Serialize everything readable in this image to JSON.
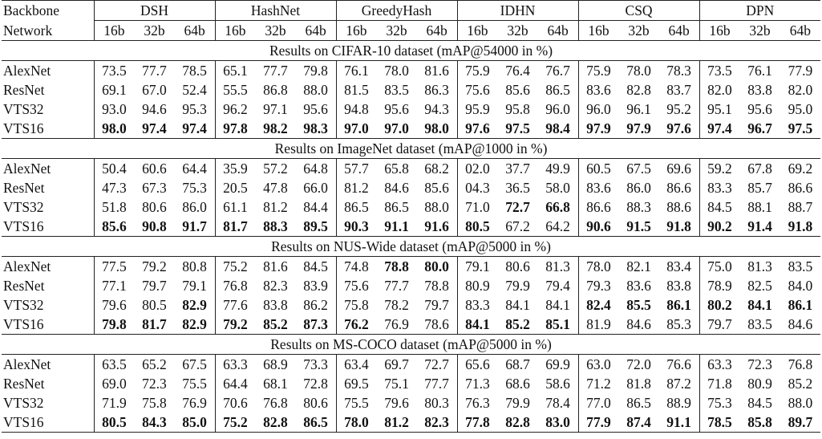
{
  "header": {
    "backbone_label": "Backbone",
    "network_label": "Network",
    "methods": [
      "DSH",
      "HashNet",
      "GreedyHash",
      "IDHN",
      "CSQ",
      "DPN"
    ],
    "bits": [
      "16b",
      "32b",
      "64b"
    ]
  },
  "sections": [
    {
      "title": "Results on CIFAR-10 dataset (mAP@54000 in %)",
      "rows": [
        {
          "backbone": "AlexNet",
          "values": [
            "73.5",
            "77.7",
            "78.5",
            "65.1",
            "77.7",
            "79.8",
            "76.1",
            "78.0",
            "81.6",
            "75.9",
            "76.4",
            "76.7",
            "75.9",
            "78.0",
            "78.3",
            "73.5",
            "76.1",
            "77.9"
          ],
          "bold": []
        },
        {
          "backbone": "ResNet",
          "values": [
            "69.1",
            "67.0",
            "52.4",
            "55.5",
            "86.8",
            "88.0",
            "81.5",
            "83.5",
            "86.3",
            "75.6",
            "85.6",
            "86.5",
            "83.6",
            "82.8",
            "83.7",
            "82.0",
            "83.8",
            "82.0"
          ],
          "bold": []
        },
        {
          "backbone": "VTS32",
          "values": [
            "93.0",
            "94.6",
            "95.3",
            "96.2",
            "97.1",
            "95.6",
            "94.8",
            "95.6",
            "94.3",
            "95.9",
            "95.8",
            "96.0",
            "96.0",
            "96.1",
            "95.2",
            "95.1",
            "95.6",
            "95.0"
          ],
          "bold": []
        },
        {
          "backbone": "VTS16",
          "values": [
            "98.0",
            "97.4",
            "97.4",
            "97.8",
            "98.2",
            "98.3",
            "97.0",
            "97.0",
            "98.0",
            "97.6",
            "97.5",
            "98.4",
            "97.9",
            "97.9",
            "97.6",
            "97.4",
            "96.7",
            "97.5"
          ],
          "bold": [
            0,
            1,
            2,
            3,
            4,
            5,
            6,
            7,
            8,
            9,
            10,
            11,
            12,
            13,
            14,
            15,
            16,
            17
          ]
        }
      ]
    },
    {
      "title": "Results on ImageNet dataset (mAP@1000 in %)",
      "rows": [
        {
          "backbone": "AlexNet",
          "values": [
            "50.4",
            "60.6",
            "64.4",
            "35.9",
            "57.2",
            "64.8",
            "57.7",
            "65.8",
            "68.2",
            "02.0",
            "37.7",
            "49.9",
            "60.5",
            "67.5",
            "69.6",
            "59.2",
            "67.8",
            "69.2"
          ],
          "bold": []
        },
        {
          "backbone": "ResNet",
          "values": [
            "47.3",
            "67.3",
            "75.3",
            "20.5",
            "47.8",
            "66.0",
            "81.2",
            "84.6",
            "85.6",
            "04.3",
            "36.5",
            "58.0",
            "83.6",
            "86.0",
            "86.6",
            "83.3",
            "85.7",
            "86.6"
          ],
          "bold": []
        },
        {
          "backbone": "VTS32",
          "values": [
            "51.8",
            "80.6",
            "86.0",
            "61.1",
            "81.2",
            "84.4",
            "86.5",
            "86.5",
            "88.0",
            "71.0",
            "72.7",
            "66.8",
            "86.6",
            "88.3",
            "88.6",
            "84.5",
            "88.1",
            "88.7"
          ],
          "bold": [
            10,
            11
          ]
        },
        {
          "backbone": "VTS16",
          "values": [
            "85.6",
            "90.8",
            "91.7",
            "81.7",
            "88.3",
            "89.5",
            "90.3",
            "91.1",
            "91.6",
            "80.5",
            "67.2",
            "64.2",
            "90.6",
            "91.5",
            "91.8",
            "90.2",
            "91.4",
            "91.8"
          ],
          "bold": [
            0,
            1,
            2,
            3,
            4,
            5,
            6,
            7,
            8,
            9,
            12,
            13,
            14,
            15,
            16,
            17
          ]
        }
      ]
    },
    {
      "title": "Results on NUS-Wide dataset (mAP@5000 in %)",
      "rows": [
        {
          "backbone": "AlexNet",
          "values": [
            "77.5",
            "79.2",
            "80.8",
            "75.2",
            "81.6",
            "84.5",
            "74.8",
            "78.8",
            "80.0",
            "79.1",
            "80.6",
            "81.3",
            "78.0",
            "82.1",
            "83.4",
            "75.0",
            "81.3",
            "83.5"
          ],
          "bold": [
            7,
            8
          ]
        },
        {
          "backbone": "ResNet",
          "values": [
            "77.1",
            "79.7",
            "79.1",
            "76.8",
            "82.3",
            "83.9",
            "75.6",
            "77.7",
            "78.8",
            "80.9",
            "79.9",
            "79.4",
            "79.3",
            "83.6",
            "83.8",
            "78.9",
            "82.5",
            "84.0"
          ],
          "bold": []
        },
        {
          "backbone": "VTS32",
          "values": [
            "79.6",
            "80.5",
            "82.9",
            "77.6",
            "83.8",
            "86.2",
            "75.8",
            "78.2",
            "79.7",
            "83.3",
            "84.1",
            "84.1",
            "82.4",
            "85.5",
            "86.1",
            "80.2",
            "84.1",
            "86.1"
          ],
          "bold": [
            2,
            12,
            13,
            14,
            15,
            16,
            17
          ]
        },
        {
          "backbone": "VTS16",
          "values": [
            "79.8",
            "81.7",
            "82.9",
            "79.2",
            "85.2",
            "87.3",
            "76.2",
            "76.9",
            "78.6",
            "84.1",
            "85.2",
            "85.1",
            "81.9",
            "84.6",
            "85.3",
            "79.7",
            "83.5",
            "84.6"
          ],
          "bold": [
            0,
            1,
            2,
            3,
            4,
            5,
            6,
            9,
            10,
            11
          ]
        }
      ]
    },
    {
      "title": "Results on MS-COCO dataset (mAP@5000 in %)",
      "rows": [
        {
          "backbone": "AlexNet",
          "values": [
            "63.5",
            "65.2",
            "67.5",
            "63.3",
            "68.9",
            "73.3",
            "63.4",
            "69.7",
            "72.7",
            "65.6",
            "68.7",
            "69.9",
            "63.0",
            "72.0",
            "76.6",
            "63.3",
            "72.3",
            "76.8"
          ],
          "bold": []
        },
        {
          "backbone": "ResNet",
          "values": [
            "69.0",
            "72.3",
            "75.5",
            "64.4",
            "68.1",
            "72.8",
            "69.5",
            "75.1",
            "77.7",
            "71.3",
            "68.6",
            "58.6",
            "71.2",
            "81.8",
            "87.2",
            "71.8",
            "80.9",
            "85.2"
          ],
          "bold": []
        },
        {
          "backbone": "VTS32",
          "values": [
            "71.9",
            "75.8",
            "76.9",
            "70.6",
            "76.8",
            "80.6",
            "75.5",
            "79.6",
            "80.3",
            "76.3",
            "79.9",
            "78.4",
            "77.0",
            "86.5",
            "88.9",
            "75.3",
            "84.5",
            "88.0"
          ],
          "bold": []
        },
        {
          "backbone": "VTS16",
          "values": [
            "80.5",
            "84.3",
            "85.0",
            "75.2",
            "82.8",
            "86.5",
            "78.0",
            "81.2",
            "82.3",
            "77.8",
            "82.8",
            "83.0",
            "77.9",
            "87.4",
            "91.1",
            "78.5",
            "85.8",
            "89.7"
          ],
          "bold": [
            0,
            1,
            2,
            3,
            4,
            5,
            6,
            7,
            8,
            9,
            10,
            11,
            12,
            13,
            14,
            15,
            16,
            17
          ]
        }
      ]
    }
  ]
}
